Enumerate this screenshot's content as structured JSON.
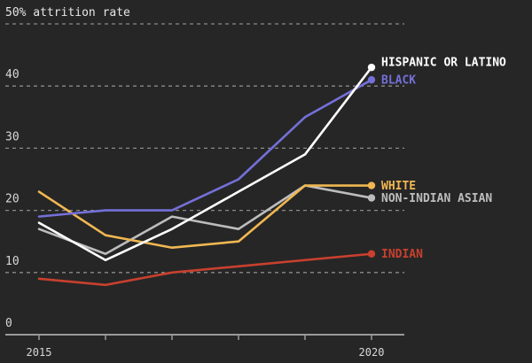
{
  "chart_data": {
    "type": "line",
    "title": "50% attrition rate",
    "xlabel": "",
    "ylabel": "50% attrition rate",
    "x": [
      2015,
      2016,
      2017,
      2018,
      2019,
      2020
    ],
    "x_tick_labels": [
      "2015",
      "",
      "",
      "",
      "",
      "2020"
    ],
    "ylim": [
      0,
      50
    ],
    "y_ticks": [
      0,
      10,
      20,
      30,
      40,
      50
    ],
    "y_tick_labels": [
      "0",
      "10",
      "20",
      "30",
      "40",
      ""
    ],
    "grid": true,
    "legend": "direct labels at line ends (right)",
    "series": [
      {
        "name": "HISPANIC OR LATINO",
        "color": "#ffffff",
        "values": [
          18,
          12,
          17,
          23,
          29,
          43
        ]
      },
      {
        "name": "BLACK",
        "color": "#7470d8",
        "values": [
          19,
          20,
          20,
          25,
          35,
          41
        ]
      },
      {
        "name": "WHITE",
        "color": "#f0b752",
        "values": [
          23,
          16,
          14,
          15,
          24,
          24
        ]
      },
      {
        "name": "NON-INDIAN ASIAN",
        "color": "#bdbdbd",
        "values": [
          17,
          13,
          19,
          17,
          24,
          22
        ]
      },
      {
        "name": "INDIAN",
        "color": "#c8402e",
        "values": [
          9,
          8,
          10,
          11,
          12,
          13
        ]
      }
    ]
  }
}
